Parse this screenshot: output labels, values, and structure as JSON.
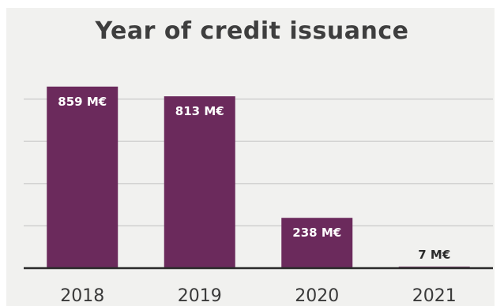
{
  "chart_data": {
    "type": "bar",
    "title": "Year of credit issuance",
    "categories": [
      "2018",
      "2019",
      "2020",
      "2021"
    ],
    "values": [
      859,
      813,
      238,
      7
    ],
    "data_labels": [
      "859 M€",
      "813 M€",
      "238 M€",
      "7 M€"
    ],
    "unit": "M€",
    "ylim": [
      0,
      1000
    ],
    "grid": true,
    "legend": "none",
    "colors": {
      "bar": "#6b2a5c",
      "label_inside": "#ffffff",
      "label_outside": "#2b2b2b",
      "grid": "#c9c9c9",
      "baseline": "#2a2a2a"
    }
  }
}
